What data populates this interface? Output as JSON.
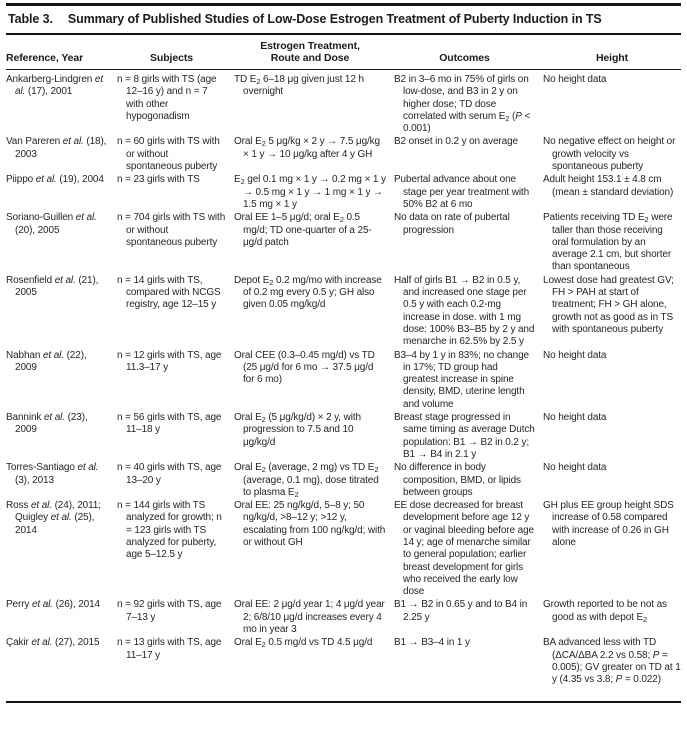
{
  "title": {
    "number": "Table 3.",
    "text": "Summary of Published Studies of Low-Dose Estrogen Treatment of Puberty Induction in TS"
  },
  "table": {
    "columns": [
      {
        "label": "Reference, Year"
      },
      {
        "label": "Subjects"
      },
      {
        "label": "Estrogen Treatment, Route and Dose"
      },
      {
        "label": "Outcomes"
      },
      {
        "label": "Height"
      }
    ],
    "rows": [
      {
        "reference": "Ankarberg-Lindgren <i>et al.</i> (17), 2001",
        "subjects": "n = 8 girls with TS (age 12–16 y) and n = 7 with other hypogonadism",
        "treatment": "TD E<sub>2</sub> 6–18 μg given just 12 h overnight",
        "outcomes": "B2 in 3–6 mo in 75% of girls on low-dose, and B3 in 2 y on higher dose; TD dose correlated with serum E<sub>2</sub> (<i>P</i> &lt; 0.001)",
        "height": "No height data"
      },
      {
        "reference": "Van Pareren <i>et al.</i> (18), 2003",
        "subjects": "n = 60 girls with TS with or without spontaneous puberty",
        "treatment": "Oral E<sub>2</sub> 5 μg/kg × 2 y → 7.5 μg/kg × 1 y → 10 μg/kg after 4 y GH",
        "outcomes": "B2 onset in 0.2 y on average",
        "height": "No negative effect on height or growth velocity vs spontaneous puberty"
      },
      {
        "reference": "Piippo <i>et al.</i> (19), 2004",
        "subjects": "n = 23 girls with TS",
        "treatment": "E<sub>2</sub> gel 0.1 mg × 1 y → 0.2 mg × 1 y → 0.5 mg × 1 y → 1 mg × 1 y → 1.5 mg × 1 y",
        "outcomes": "Pubertal advance about one stage per year treatment with 50% B2 at 6 mo",
        "height": "Adult height 153.1 ± 4.8 cm (mean ± standard deviation)"
      },
      {
        "reference": "Soriano-Guillen <i>et al.</i> (20), 2005",
        "subjects": "n = 704 girls with TS with or without spontaneous puberty",
        "treatment": "Oral EE 1–5 μg/d; oral E<sub>2</sub> 0.5 mg/d; TD one-quarter of a 25-μg/d patch",
        "outcomes": "No data on rate of pubertal progression",
        "height": "Patients receiving TD E<sub>2</sub> were taller than those receiving oral formulation by an average 2.1 cm, but shorter than spontaneous"
      },
      {
        "reference": "Rosenfield <i>et al.</i> (21), 2005",
        "subjects": "n = 14 girls with TS, compared with NCGS registry, age 12–15 y",
        "treatment": "Depot E<sub>2</sub> 0.2 mg/mo with increase of 0.2 mg every 0.5 y; GH also given 0.05 mg/kg/d",
        "outcomes": "Half of girls B1 → B2 in 0.5 y, and increased one stage per 0.5 y with each 0.2-mg increase in dose. with 1 mg dose: 100% B3–B5 by 2 y and menarche in 62.5% by 2.5 y",
        "height": "Lowest dose had greatest GV; FH &gt; PAH at start of treatment; FH &gt; GH alone, growth not as good as in TS with spontaneous puberty"
      },
      {
        "reference": "Nabhan <i>et al.</i> (22), 2009",
        "subjects": "n = 12 girls with TS, age 11.3–17 y",
        "treatment": "Oral CEE (0.3–0.45 mg/d) vs TD (25 μg/d for 6 mo → 37.5 μg/d for 6 mo)",
        "outcomes": "B3–4 by 1 y in 83%; no change in 17%; TD group had greatest increase in spine density, BMD, uterine length and volume",
        "height": "No height data"
      },
      {
        "reference": "Bannink <i>et al.</i> (23), 2009",
        "subjects": "n = 56 girls with TS, age 11–18 y",
        "treatment": "Oral E<sub>2</sub> (5 μg/kg/d) × 2 y, with progression to 7.5 and 10 μg/kg/d",
        "outcomes": "Breast stage progressed in same timing as average Dutch population: B1 → B2 in 0.2 y; B1 → B4 in 2.1 y",
        "height": "No height data"
      },
      {
        "reference": "Torres-Santiago <i>et al.</i> (3), 2013",
        "subjects": "n = 40 girls with TS, age 13–20 y",
        "treatment": "Oral E<sub>2</sub> (average, 2 mg) vs TD E<sub>2</sub> (average, 0.1 mg), dose titrated to plasma E<sub>2</sub>",
        "outcomes": "No difference in body composition, BMD, or lipids between groups",
        "height": "No height data"
      },
      {
        "reference": "Ross <i>et al.</i> (24), 2011; Quigley <i>et al.</i> (25), 2014",
        "subjects": "n = 144 girls with TS analyzed for growth; n = 123 girls with TS analyzed for puberty, age 5–12.5 y",
        "treatment": "Oral EE: 25 ng/kg/d, 5–8 y; 50 ng/kg/d, &gt;8–12 y; &gt;12 y, escalating from 100 ng/kg/d; with or without GH",
        "outcomes": "EE dose decreased for breast development before age 12 y or vaginal bleeding before age 14 y; age of menarche similar to general population; earlier breast development for girls who received the early low dose",
        "height": "GH plus EE group height SDS increase of 0.58 compared with increase of 0.26 in GH alone"
      },
      {
        "reference": "Perry <i>et al.</i> (26), 2014",
        "subjects": "n = 92 girls with TS, age 7–13 y",
        "treatment": "Oral EE: 2 μg/d year 1; 4 μg/d year 2; 6/8/10 μg/d increases every 4 mo in year 3",
        "outcomes": "B1 → B2 in 0.65 y and to B4 in 2.25 y",
        "height": "Growth reported to be not as good as with depot E<sub>2</sub>"
      },
      {
        "reference": "Çakir <i>et al.</i> (27), 2015",
        "subjects": "n = 13 girls with TS, age 11–17 y",
        "treatment": "Oral E<sub>2</sub> 0.5 mg/d vs TD 4.5 μg/d",
        "outcomes": "B1 → B3–4 in 1 y",
        "height": "BA advanced less with TD (ΔCA/ΔBA 2.2 vs 0.58; <i>P</i> = 0.005); GV greater on TD at 1 y (4.35 vs 3.8; <i>P</i> = 0.022)"
      }
    ]
  }
}
